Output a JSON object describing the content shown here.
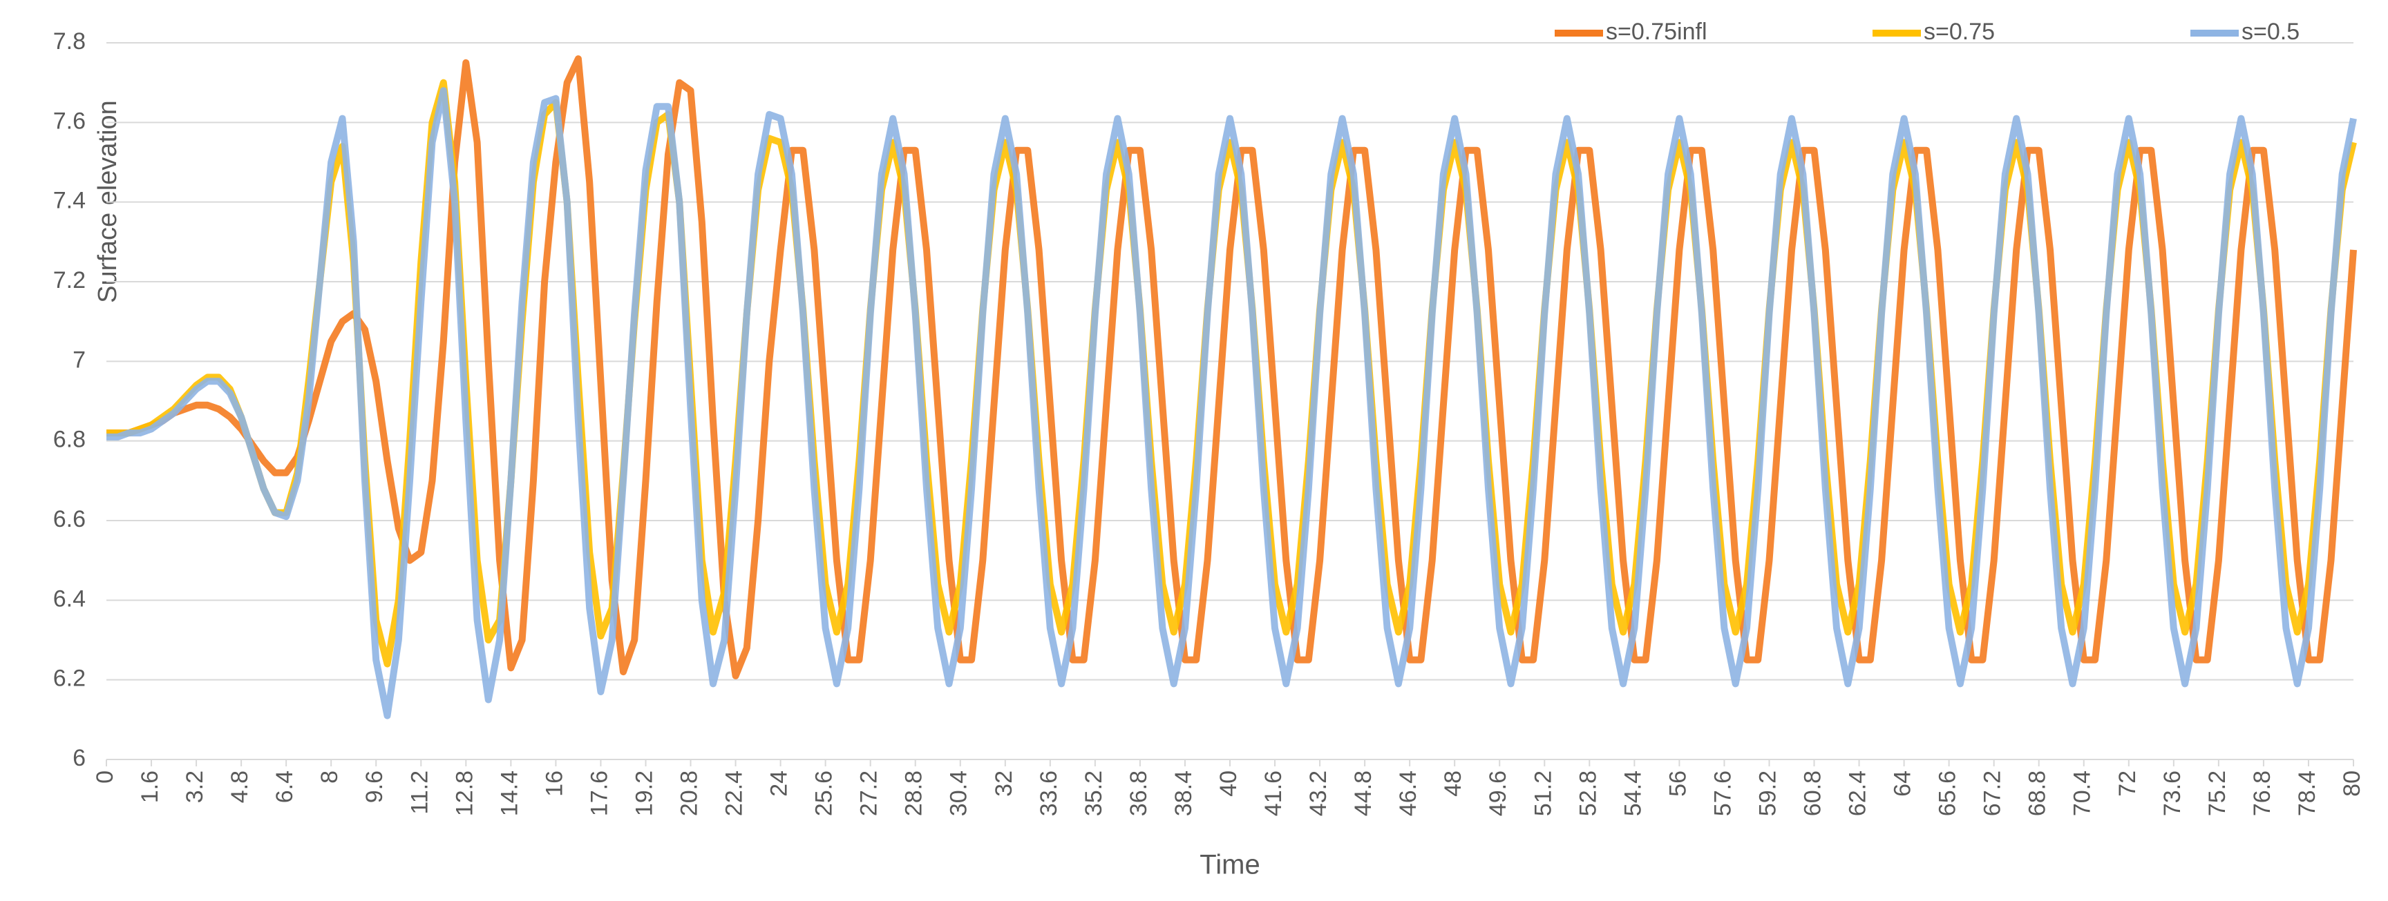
{
  "chart_data": {
    "type": "line",
    "xlabel": "Time",
    "ylabel": "Surface elevation",
    "x": [
      0,
      0.4,
      0.8,
      1.2,
      1.6,
      2,
      2.4,
      2.8,
      3.2,
      3.6,
      4,
      4.4,
      4.8,
      5.2,
      5.6,
      6,
      6.4,
      6.8,
      7.2,
      7.6,
      8,
      8.4,
      8.8,
      9.2,
      9.6,
      10,
      10.4,
      10.8,
      11.2,
      11.6,
      12,
      12.4,
      12.8,
      13.2,
      13.6,
      14,
      14.4,
      14.8,
      15.2,
      15.6,
      16,
      16.4,
      16.8,
      17.2,
      17.6,
      18,
      18.4,
      18.8,
      19.2,
      19.6,
      20,
      20.4,
      20.8,
      21.2,
      21.6,
      22,
      22.4,
      22.8,
      23.2,
      23.6,
      24,
      24.4,
      24.8,
      25.2,
      25.6,
      26,
      26.4,
      26.8,
      27.2,
      27.6,
      28,
      28.4,
      28.8,
      29.2,
      29.6,
      30,
      30.4,
      30.8,
      31.2,
      31.6,
      32,
      32.4,
      32.8,
      33.2,
      33.6,
      34,
      34.4,
      34.8,
      35.2,
      35.6,
      36,
      36.4,
      36.8,
      37.2,
      37.6,
      38,
      38.4,
      38.8,
      39.2,
      39.6,
      40,
      40.4,
      40.8,
      41.2,
      41.6,
      42,
      42.4,
      42.8,
      43.2,
      43.6,
      44,
      44.4,
      44.8,
      45.2,
      45.6,
      46,
      46.4,
      46.8,
      47.2,
      47.6,
      48,
      48.4,
      48.8,
      49.2,
      49.6,
      50,
      50.4,
      50.8,
      51.2,
      51.6,
      52,
      52.4,
      52.8,
      53.2,
      53.6,
      54,
      54.4,
      54.8,
      55.2,
      55.6,
      56,
      56.4,
      56.8,
      57.2,
      57.6,
      58,
      58.4,
      58.8,
      59.2,
      59.6,
      60,
      60.4,
      60.8,
      61.2,
      61.6,
      62,
      62.4,
      62.8,
      63.2,
      63.6,
      64,
      64.4,
      64.8,
      65.2,
      65.6,
      66,
      66.4,
      66.8,
      67.2,
      67.6,
      68,
      68.4,
      68.8,
      69.2,
      69.6,
      70,
      70.4,
      70.8,
      71.2,
      71.6,
      72,
      72.4,
      72.8,
      73.2,
      73.6,
      74,
      74.4,
      74.8,
      75.2,
      75.6,
      76,
      76.4,
      76.8,
      77.2,
      77.6,
      78,
      78.4,
      78.8,
      79.2,
      79.6,
      80
    ],
    "series": [
      {
        "name": "s=0.75infl",
        "color": "#f47b20",
        "values": [
          6.82,
          6.82,
          6.82,
          6.83,
          6.84,
          6.85,
          6.87,
          6.88,
          6.89,
          6.89,
          6.88,
          6.86,
          6.83,
          6.79,
          6.75,
          6.72,
          6.72,
          6.76,
          6.85,
          6.95,
          7.05,
          7.1,
          7.12,
          7.08,
          6.95,
          6.75,
          6.58,
          6.5,
          6.52,
          6.7,
          7.05,
          7.5,
          7.75,
          7.55,
          7,
          6.5,
          6.23,
          6.3,
          6.7,
          7.2,
          7.5,
          7.7,
          7.76,
          7.45,
          6.95,
          6.45,
          6.22,
          6.3,
          6.7,
          7.15,
          7.52,
          7.7,
          7.68,
          7.35,
          6.85,
          6.4,
          6.21,
          6.28,
          6.6,
          7,
          7.28,
          7.53,
          7.53,
          7.28,
          6.89,
          6.5,
          6.25,
          6.25,
          6.5,
          6.89,
          7.28,
          7.53,
          7.53,
          7.28,
          6.89,
          6.5,
          6.25,
          6.25,
          6.5,
          6.89,
          7.28,
          7.53,
          7.53,
          7.28,
          6.89,
          6.5,
          6.25,
          6.25,
          6.5,
          6.89,
          7.28,
          7.53,
          7.53,
          7.28,
          6.89,
          6.5,
          6.25,
          6.25,
          6.5,
          6.89,
          7.28,
          7.53,
          7.53,
          7.28,
          6.89,
          6.5,
          6.25,
          6.25,
          6.5,
          6.89,
          7.28,
          7.53,
          7.53,
          7.28,
          6.89,
          6.5,
          6.25,
          6.25,
          6.5,
          6.89,
          7.28,
          7.53,
          7.53,
          7.28,
          6.89,
          6.5,
          6.25,
          6.25,
          6.5,
          6.89,
          7.28,
          7.53,
          7.53,
          7.28,
          6.89,
          6.5,
          6.25,
          6.25,
          6.5,
          6.89,
          7.28,
          7.53,
          7.53,
          7.28,
          6.89,
          6.5,
          6.25,
          6.25,
          6.5,
          6.89,
          7.28,
          7.53,
          7.53,
          7.28,
          6.89,
          6.5,
          6.25,
          6.25,
          6.5,
          6.89,
          7.28,
          7.53,
          7.53,
          7.28,
          6.89,
          6.5,
          6.25,
          6.25,
          6.5,
          6.89,
          7.28,
          7.53,
          7.53,
          7.28,
          6.89,
          6.5,
          6.25,
          6.25,
          6.5,
          6.89,
          7.28,
          7.53,
          7.53,
          7.28,
          6.89,
          6.5,
          6.25,
          6.25,
          6.5,
          6.89,
          7.28,
          7.53,
          7.53,
          7.28,
          6.89,
          6.5,
          6.25,
          6.25,
          6.5,
          6.89,
          7.28
        ]
      },
      {
        "name": "s=0.75",
        "color": "#ffc000",
        "values": [
          6.82,
          6.82,
          6.82,
          6.83,
          6.84,
          6.86,
          6.88,
          6.91,
          6.94,
          6.96,
          6.96,
          6.93,
          6.86,
          6.77,
          6.68,
          6.62,
          6.62,
          6.72,
          6.95,
          7.2,
          7.45,
          7.54,
          7.25,
          6.75,
          6.35,
          6.24,
          6.4,
          6.8,
          7.25,
          7.6,
          7.7,
          7.45,
          6.95,
          6.5,
          6.3,
          6.35,
          6.7,
          7.1,
          7.45,
          7.62,
          7.65,
          7.4,
          6.95,
          6.52,
          6.31,
          6.38,
          6.72,
          7.1,
          7.43,
          7.6,
          7.62,
          7.4,
          6.95,
          6.5,
          6.32,
          6.42,
          6.75,
          7.12,
          7.43,
          7.56,
          7.55,
          7.43,
          7.13,
          6.75,
          6.44,
          6.32,
          6.44,
          6.75,
          7.13,
          7.43,
          7.55,
          7.43,
          7.13,
          6.75,
          6.44,
          6.32,
          6.44,
          6.75,
          7.13,
          7.43,
          7.55,
          7.43,
          7.13,
          6.75,
          6.44,
          6.32,
          6.44,
          6.75,
          7.13,
          7.43,
          7.55,
          7.43,
          7.13,
          6.75,
          6.44,
          6.32,
          6.44,
          6.75,
          7.13,
          7.43,
          7.55,
          7.43,
          7.13,
          6.75,
          6.44,
          6.32,
          6.44,
          6.75,
          7.13,
          7.43,
          7.55,
          7.43,
          7.13,
          6.75,
          6.44,
          6.32,
          6.44,
          6.75,
          7.13,
          7.43,
          7.55,
          7.43,
          7.13,
          6.75,
          6.44,
          6.32,
          6.44,
          6.75,
          7.13,
          7.43,
          7.55,
          7.43,
          7.13,
          6.75,
          6.44,
          6.32,
          6.44,
          6.75,
          7.13,
          7.43,
          7.55,
          7.43,
          7.13,
          6.75,
          6.44,
          6.32,
          6.44,
          6.75,
          7.13,
          7.43,
          7.55,
          7.43,
          7.13,
          6.75,
          6.44,
          6.32,
          6.44,
          6.75,
          7.13,
          7.43,
          7.55,
          7.43,
          7.13,
          6.75,
          6.44,
          6.32,
          6.44,
          6.75,
          7.13,
          7.43,
          7.55,
          7.43,
          7.13,
          6.75,
          6.44,
          6.32,
          6.44,
          6.75,
          7.13,
          7.43,
          7.55,
          7.43,
          7.13,
          6.75,
          6.44,
          6.32,
          6.44,
          6.75,
          7.13,
          7.43,
          7.55,
          7.43,
          7.13,
          6.75,
          6.44,
          6.32,
          6.44,
          6.75,
          7.13,
          7.43,
          7.55
        ]
      },
      {
        "name": "s=0.5",
        "color": "#8eb4e3",
        "values": [
          6.81,
          6.81,
          6.82,
          6.82,
          6.83,
          6.85,
          6.87,
          6.9,
          6.93,
          6.95,
          6.95,
          6.92,
          6.86,
          6.77,
          6.68,
          6.62,
          6.61,
          6.7,
          6.9,
          7.2,
          7.5,
          7.61,
          7.3,
          6.7,
          6.25,
          6.11,
          6.3,
          6.7,
          7.15,
          7.55,
          7.68,
          7.4,
          6.85,
          6.35,
          6.15,
          6.3,
          6.7,
          7.15,
          7.5,
          7.65,
          7.66,
          7.4,
          6.85,
          6.38,
          6.17,
          6.3,
          6.7,
          7.12,
          7.48,
          7.64,
          7.64,
          7.4,
          6.88,
          6.4,
          6.19,
          6.3,
          6.68,
          7.12,
          7.47,
          7.62,
          7.61,
          7.47,
          7.12,
          6.68,
          6.33,
          6.19,
          6.33,
          6.68,
          7.12,
          7.47,
          7.61,
          7.47,
          7.12,
          6.68,
          6.33,
          6.19,
          6.33,
          6.68,
          7.12,
          7.47,
          7.61,
          7.47,
          7.12,
          6.68,
          6.33,
          6.19,
          6.33,
          6.68,
          7.12,
          7.47,
          7.61,
          7.47,
          7.12,
          6.68,
          6.33,
          6.19,
          6.33,
          6.68,
          7.12,
          7.47,
          7.61,
          7.47,
          7.12,
          6.68,
          6.33,
          6.19,
          6.33,
          6.68,
          7.12,
          7.47,
          7.61,
          7.47,
          7.12,
          6.68,
          6.33,
          6.19,
          6.33,
          6.68,
          7.12,
          7.47,
          7.61,
          7.47,
          7.12,
          6.68,
          6.33,
          6.19,
          6.33,
          6.68,
          7.12,
          7.47,
          7.61,
          7.47,
          7.12,
          6.68,
          6.33,
          6.19,
          6.33,
          6.68,
          7.12,
          7.47,
          7.61,
          7.47,
          7.12,
          6.68,
          6.33,
          6.19,
          6.33,
          6.68,
          7.12,
          7.47,
          7.61,
          7.47,
          7.12,
          6.68,
          6.33,
          6.19,
          6.33,
          6.68,
          7.12,
          7.47,
          7.61,
          7.47,
          7.12,
          6.68,
          6.33,
          6.19,
          6.33,
          6.68,
          7.12,
          7.47,
          7.61,
          7.47,
          7.12,
          6.68,
          6.33,
          6.19,
          6.33,
          6.68,
          7.12,
          7.47,
          7.61,
          7.47,
          7.12,
          6.68,
          6.33,
          6.19,
          6.33,
          6.68,
          7.12,
          7.47,
          7.61,
          7.47,
          7.12,
          6.68,
          6.33,
          6.19,
          6.33,
          6.68,
          7.12,
          7.47,
          7.61
        ]
      }
    ],
    "xlim": [
      0,
      80
    ],
    "xticks": [
      0,
      1.6,
      3.2,
      4.8,
      6.4,
      8,
      9.6,
      11.2,
      12.8,
      14.4,
      16,
      17.6,
      19.2,
      20.8,
      22.4,
      24,
      25.6,
      27.2,
      28.8,
      30.4,
      32,
      33.6,
      35.2,
      36.8,
      38.4,
      40,
      41.6,
      43.2,
      44.8,
      46.4,
      48,
      49.6,
      51.2,
      52.8,
      54.4,
      56,
      57.6,
      59.2,
      60.8,
      62.4,
      64,
      65.6,
      67.2,
      68.8,
      70.4,
      72,
      73.6,
      75.2,
      76.8,
      78.4,
      80
    ],
    "ylim": [
      6,
      7.8
    ],
    "yticks": [
      6,
      6.2,
      6.4,
      6.6,
      6.8,
      7,
      7.2,
      7.4,
      7.6,
      7.8
    ],
    "grid": true,
    "legend": "top-right"
  }
}
